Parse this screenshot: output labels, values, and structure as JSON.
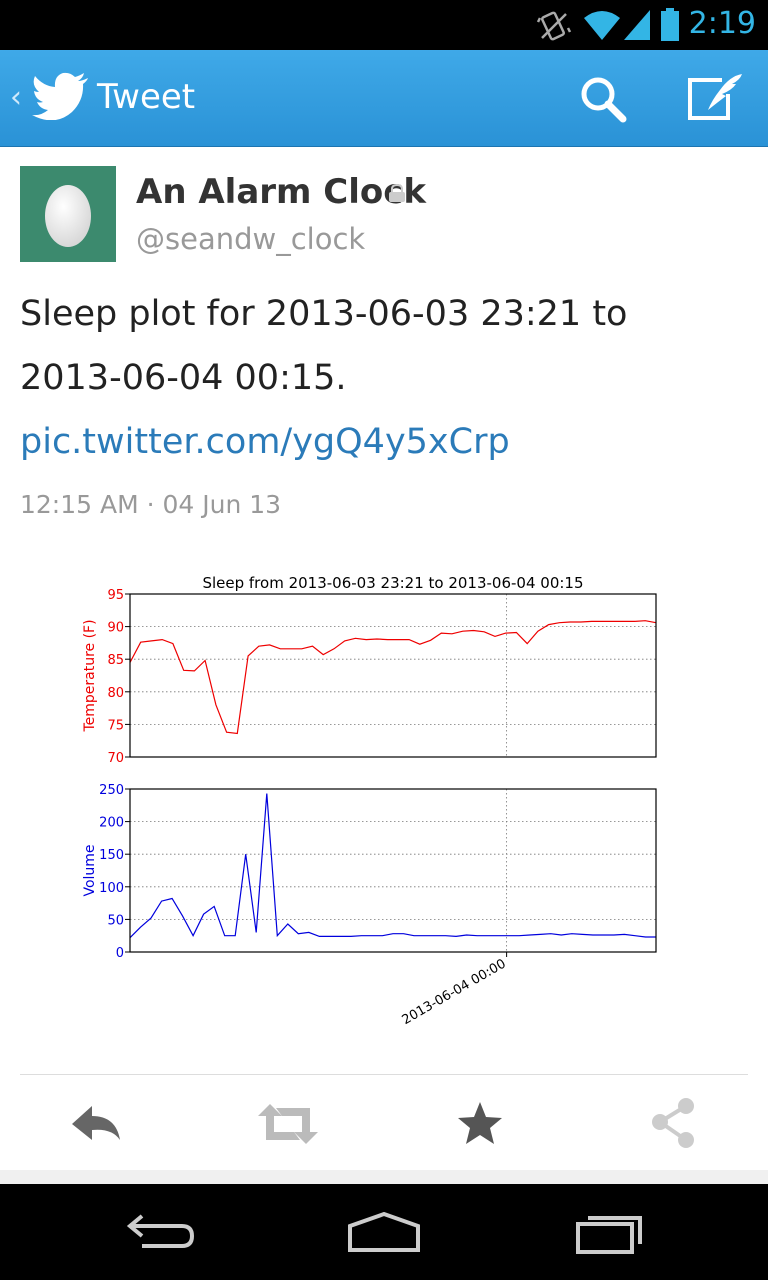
{
  "status_bar": {
    "time": "2:19",
    "icons": [
      "vibrate-icon",
      "wifi-icon",
      "signal-icon",
      "battery-icon"
    ]
  },
  "action_bar": {
    "title": "Tweet",
    "icons": [
      "back-chevron-icon",
      "twitter-bird-icon",
      "search-icon",
      "compose-icon"
    ]
  },
  "tweet": {
    "author_name": "An Alarm Clock",
    "handle": "@seandw_clock",
    "text_prefix": "Sleep plot for 2013-06-03 23:21 to 2013-06-04 00:15.",
    "link_text": "pic.twitter.com/ygQ4y5xCrp",
    "timestamp": "12:15 AM · 04 Jun 13",
    "avatar_color": "#3c8a6e"
  },
  "chart_data": [
    {
      "type": "line",
      "title": "Sleep from 2013-06-03 23:21 to 2013-06-04 00:15",
      "ylabel": "Temperature (F)",
      "ylim": [
        70,
        95
      ],
      "yticks": [
        70,
        75,
        80,
        85,
        90,
        95
      ],
      "color": "#ee0000",
      "grid": true,
      "series": [
        {
          "values": [
            84.5,
            87.6,
            87.8,
            88.0,
            87.4,
            83.3,
            83.2,
            84.8,
            78.0,
            73.8,
            73.6,
            85.5,
            87.0,
            87.2,
            86.6,
            86.6,
            86.6,
            87.0,
            85.7,
            86.6,
            87.8,
            88.2,
            88.0,
            88.1,
            88.0,
            88.0,
            88.0,
            87.3,
            87.9,
            89.0,
            88.9,
            89.3,
            89.4,
            89.2,
            88.5,
            89.0,
            89.1,
            87.4,
            89.3,
            90.3,
            90.6,
            90.7,
            90.7,
            90.8,
            90.8,
            90.8,
            90.8,
            90.8,
            90.9,
            90.6
          ]
        }
      ]
    },
    {
      "type": "line",
      "ylabel": "Volume",
      "ylim": [
        0,
        250
      ],
      "yticks": [
        0,
        50,
        100,
        150,
        200,
        250
      ],
      "color": "#0000dd",
      "grid": true,
      "xtick_label": "2013-06-04 00:00",
      "xtick_fraction": 0.716,
      "series": [
        {
          "values": [
            22,
            38,
            52,
            78,
            82,
            55,
            25,
            58,
            70,
            25,
            25,
            150,
            30,
            243,
            25,
            43,
            28,
            30,
            24,
            24,
            24,
            24,
            25,
            25,
            25,
            28,
            28,
            25,
            25,
            25,
            25,
            24,
            26,
            25,
            25,
            25,
            25,
            25,
            26,
            27,
            28,
            26,
            28,
            27,
            26,
            26,
            26,
            27,
            25,
            23,
            23
          ]
        }
      ]
    }
  ],
  "actions": {
    "icons": [
      "reply-icon",
      "retweet-icon",
      "favorite-star-icon",
      "share-icon"
    ]
  },
  "nav_bar": {
    "icons": [
      "back-nav-icon",
      "home-nav-icon",
      "recents-nav-icon"
    ]
  }
}
